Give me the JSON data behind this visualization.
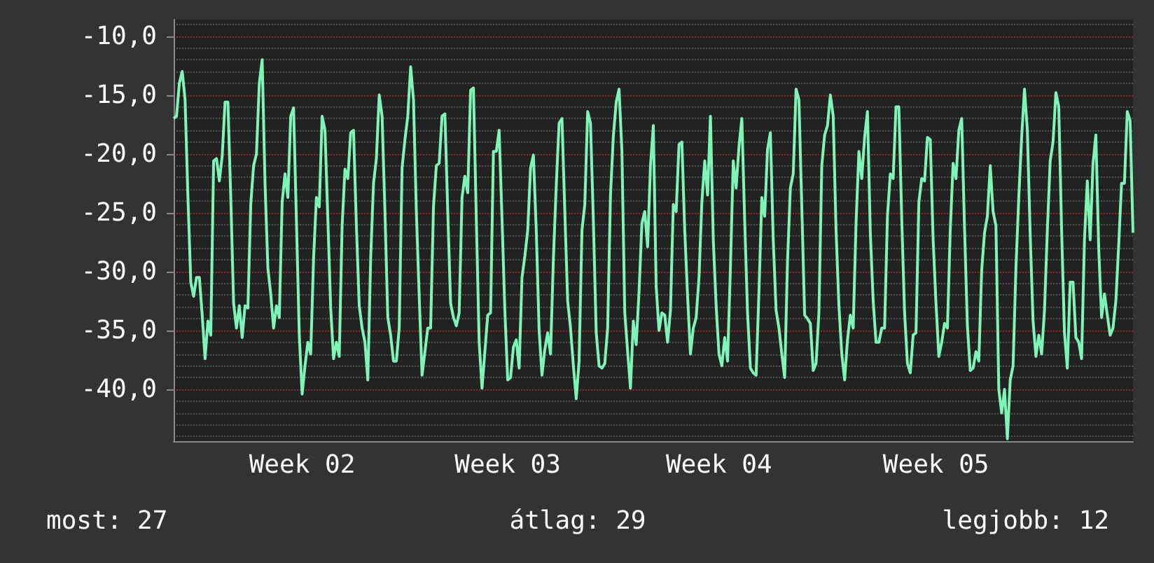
{
  "chart_data": {
    "type": "line",
    "grid": "y",
    "marker": "none",
    "line_style": "solid",
    "annotations": [
      "most: 27",
      "átlag: 29",
      "legjobb: 12"
    ],
    "categories": [
      null,
      null,
      null,
      null,
      null,
      null,
      null,
      null,
      null,
      null,
      null,
      null,
      null,
      null,
      null,
      null,
      null,
      null,
      null,
      null,
      null,
      null,
      null,
      null,
      null,
      null,
      null,
      null,
      null,
      null,
      null,
      null,
      null,
      null,
      null,
      null,
      null,
      null,
      null,
      null,
      null,
      null,
      null,
      null,
      null,
      "Week 02",
      null,
      null,
      null,
      null,
      null,
      null,
      null,
      null,
      null,
      null,
      null,
      null,
      null,
      null,
      null,
      null,
      null,
      null,
      null,
      null,
      null,
      null,
      null,
      null,
      null,
      null,
      null,
      null,
      null,
      null,
      null,
      null,
      null,
      null,
      null,
      null,
      null,
      null,
      null,
      null,
      null,
      null,
      null,
      null,
      null,
      null,
      null,
      null,
      null,
      null,
      null,
      null,
      null,
      null,
      null,
      null,
      null,
      null,
      null,
      null,
      null,
      null,
      null,
      null,
      null,
      null,
      null,
      null,
      null,
      null,
      null,
      "Week 03",
      null,
      null,
      null,
      null,
      null,
      null,
      null,
      null,
      null,
      null,
      null,
      null,
      null,
      null,
      null,
      null,
      null,
      null,
      null,
      null,
      null,
      null,
      null,
      null,
      null,
      null,
      null,
      null,
      null,
      null,
      null,
      null,
      null,
      null,
      null,
      null,
      null,
      null,
      null,
      null,
      null,
      null,
      null,
      null,
      null,
      null,
      null,
      null,
      null,
      null,
      null,
      null,
      null,
      null,
      null,
      null,
      null,
      null,
      null,
      null,
      null,
      null,
      null,
      null,
      null,
      null,
      null,
      null,
      null,
      null,
      null,
      null,
      null,
      "Week 04",
      null,
      null,
      null,
      null,
      null,
      null,
      null,
      null,
      null,
      null,
      null,
      null,
      null,
      null,
      null,
      null,
      null,
      null,
      null,
      null,
      null,
      null,
      null,
      null,
      null,
      null,
      null,
      null,
      null,
      null,
      null,
      null,
      null,
      null,
      null,
      null,
      null,
      null,
      null,
      null,
      null,
      null,
      null,
      null,
      null,
      null,
      null,
      null,
      null,
      null,
      null,
      null,
      null,
      null,
      null,
      null,
      null,
      null,
      null,
      null,
      null,
      null,
      null,
      null,
      null,
      null,
      null,
      null,
      null,
      null,
      null,
      null,
      null,
      null,
      null,
      "Week 05",
      null,
      null,
      null,
      null,
      null,
      null,
      null,
      null,
      null,
      null,
      null,
      null,
      null,
      null,
      null,
      null,
      null,
      null,
      null,
      null,
      null,
      null,
      null,
      null,
      null,
      null,
      null,
      null,
      null,
      null,
      null,
      null,
      null,
      null,
      null,
      null,
      null,
      null,
      null,
      null,
      null,
      null,
      null,
      null,
      null,
      null,
      null,
      null,
      null,
      null,
      null,
      null,
      null,
      null,
      null,
      null,
      null,
      null,
      null,
      null,
      null,
      null,
      null,
      null,
      null,
      null,
      null,
      null,
      null
    ],
    "ylim": [
      -44.4,
      -8.6
    ],
    "yticks": [
      {
        "value": -44,
        "label": null
      },
      {
        "value": -43,
        "label": null
      },
      {
        "value": -42,
        "label": null
      },
      {
        "value": -41,
        "label": null
      },
      {
        "value": -40,
        "label": "-40,0"
      },
      {
        "value": -39,
        "label": null
      },
      {
        "value": -38,
        "label": null
      },
      {
        "value": -37,
        "label": null
      },
      {
        "value": -36,
        "label": null
      },
      {
        "value": -35,
        "label": "-35,0"
      },
      {
        "value": -34,
        "label": null
      },
      {
        "value": -33,
        "label": null
      },
      {
        "value": -32,
        "label": null
      },
      {
        "value": -31,
        "label": null
      },
      {
        "value": -30,
        "label": "-30,0"
      },
      {
        "value": -29,
        "label": null
      },
      {
        "value": -28,
        "label": null
      },
      {
        "value": -27,
        "label": null
      },
      {
        "value": -26,
        "label": null
      },
      {
        "value": -25,
        "label": "-25,0"
      },
      {
        "value": -24,
        "label": null
      },
      {
        "value": -23,
        "label": null
      },
      {
        "value": -22,
        "label": null
      },
      {
        "value": -21,
        "label": null
      },
      {
        "value": -20,
        "label": "-20,0"
      },
      {
        "value": -19,
        "label": null
      },
      {
        "value": -18,
        "label": null
      },
      {
        "value": -17,
        "label": null
      },
      {
        "value": -16,
        "label": null
      },
      {
        "value": -15,
        "label": "-15,0"
      },
      {
        "value": -14,
        "label": null
      },
      {
        "value": -13,
        "label": null
      },
      {
        "value": -12,
        "label": null
      },
      {
        "value": -11,
        "label": null
      },
      {
        "value": -10,
        "label": "-10,0"
      },
      {
        "value": -9,
        "label": null
      }
    ],
    "series": [
      {
        "color": "#7ef5b6",
        "values": [
          -17.0,
          -16.8,
          -14.0,
          -13.0,
          -15.4,
          -23.7,
          -30.9,
          -32.1,
          -30.5,
          -30.5,
          -33.7,
          -37.4,
          -34.2,
          -35.4,
          -20.6,
          -20.4,
          -22.3,
          -20.2,
          -15.6,
          -15.6,
          -23.7,
          -32.7,
          -34.8,
          -32.9,
          -35.6,
          -32.9,
          -33.1,
          -24.3,
          -21.0,
          -20.0,
          -14.0,
          -12.0,
          -22.5,
          -29.7,
          -31.9,
          -34.8,
          -32.9,
          -33.9,
          -24.1,
          -21.7,
          -23.7,
          -16.8,
          -16.1,
          -25.7,
          -35.4,
          -40.4,
          -38.0,
          -36.0,
          -37.0,
          -28.9,
          -23.7,
          -24.5,
          -16.8,
          -18.0,
          -25.5,
          -33.1,
          -37.4,
          -36.0,
          -37.2,
          -26.1,
          -21.3,
          -22.1,
          -18.2,
          -18.0,
          -26.1,
          -32.9,
          -34.8,
          -36.0,
          -39.2,
          -28.9,
          -22.5,
          -20.4,
          -15.0,
          -16.8,
          -24.9,
          -33.9,
          -35.4,
          -37.6,
          -37.6,
          -34.8,
          -21.2,
          -18.8,
          -16.8,
          -12.6,
          -15.4,
          -24.9,
          -32.1,
          -38.8,
          -36.8,
          -34.8,
          -34.8,
          -24.5,
          -21.0,
          -20.8,
          -16.8,
          -16.6,
          -24.9,
          -32.7,
          -33.9,
          -34.6,
          -33.5,
          -23.7,
          -21.9,
          -23.3,
          -14.6,
          -14.4,
          -25.5,
          -36.0,
          -39.9,
          -36.8,
          -33.7,
          -33.5,
          -19.8,
          -19.8,
          -18.0,
          -25.5,
          -33.3,
          -39.2,
          -39.0,
          -36.4,
          -35.8,
          -38.2,
          -30.5,
          -28.7,
          -26.5,
          -21.2,
          -20.1,
          -26.5,
          -35.0,
          -38.8,
          -36.6,
          -35.2,
          -37.0,
          -28.9,
          -22.7,
          -17.4,
          -17.0,
          -24.9,
          -32.5,
          -34.8,
          -38.0,
          -40.8,
          -37.6,
          -26.5,
          -24.3,
          -16.4,
          -17.4,
          -25.7,
          -35.2,
          -38.0,
          -38.2,
          -37.8,
          -34.8,
          -23.5,
          -18.5,
          -15.6,
          -14.5,
          -19.8,
          -33.5,
          -36.8,
          -39.9,
          -34.2,
          -36.2,
          -31.7,
          -25.9,
          -24.9,
          -27.9,
          -21.0,
          -17.6,
          -31.3,
          -35.0,
          -33.5,
          -33.7,
          -36.0,
          -33.3,
          -24.3,
          -24.9,
          -19.2,
          -19.0,
          -26.5,
          -32.1,
          -37.0,
          -34.8,
          -33.9,
          -30.5,
          -24.1,
          -20.6,
          -23.5,
          -16.8,
          -27.3,
          -32.9,
          -37.0,
          -38.0,
          -35.6,
          -37.6,
          -29.7,
          -20.6,
          -22.9,
          -19.4,
          -17.0,
          -25.7,
          -33.5,
          -38.2,
          -38.6,
          -38.8,
          -31.7,
          -23.7,
          -25.3,
          -19.6,
          -18.2,
          -27.3,
          -33.3,
          -34.8,
          -37.0,
          -39.0,
          -29.1,
          -22.9,
          -21.7,
          -14.5,
          -15.4,
          -24.5,
          -33.7,
          -34.0,
          -34.4,
          -38.4,
          -37.8,
          -33.5,
          -21.0,
          -18.4,
          -17.6,
          -15.0,
          -16.8,
          -26.5,
          -32.9,
          -37.0,
          -39.2,
          -35.8,
          -33.7,
          -34.8,
          -25.9,
          -19.8,
          -22.1,
          -18.6,
          -16.4,
          -26.7,
          -32.5,
          -36.0,
          -36.0,
          -34.8,
          -34.8,
          -25.3,
          -21.7,
          -22.1,
          -16.0,
          -16.0,
          -25.5,
          -33.5,
          -37.8,
          -38.6,
          -35.4,
          -35.2,
          -24.1,
          -22.1,
          -22.3,
          -18.6,
          -18.8,
          -27.3,
          -32.7,
          -37.2,
          -36.0,
          -34.4,
          -34.8,
          -26.5,
          -20.8,
          -22.1,
          -18.0,
          -17.0,
          -26.3,
          -34.6,
          -38.4,
          -38.2,
          -36.8,
          -37.6,
          -29.9,
          -26.7,
          -25.3,
          -21.0,
          -24.9,
          -26.1,
          -40.0,
          -42.0,
          -40.0,
          -44.2,
          -39.2,
          -38.0,
          -29.7,
          -23.7,
          -18.6,
          -14.5,
          -18.0,
          -26.9,
          -34.2,
          -37.2,
          -35.4,
          -37.0,
          -33.3,
          -26.5,
          -20.6,
          -19.0,
          -14.8,
          -16.0,
          -26.5,
          -35.2,
          -38.2,
          -30.9,
          -30.9,
          -35.6,
          -36.0,
          -37.4,
          -27.3,
          -22.3,
          -27.3,
          -20.8,
          -18.4,
          -28.1,
          -33.9,
          -31.9,
          -33.7,
          -35.4,
          -34.8,
          -32.5,
          -27.7,
          -22.5,
          -22.5,
          -16.4,
          -17.2,
          -26.7
        ]
      }
    ]
  }
}
